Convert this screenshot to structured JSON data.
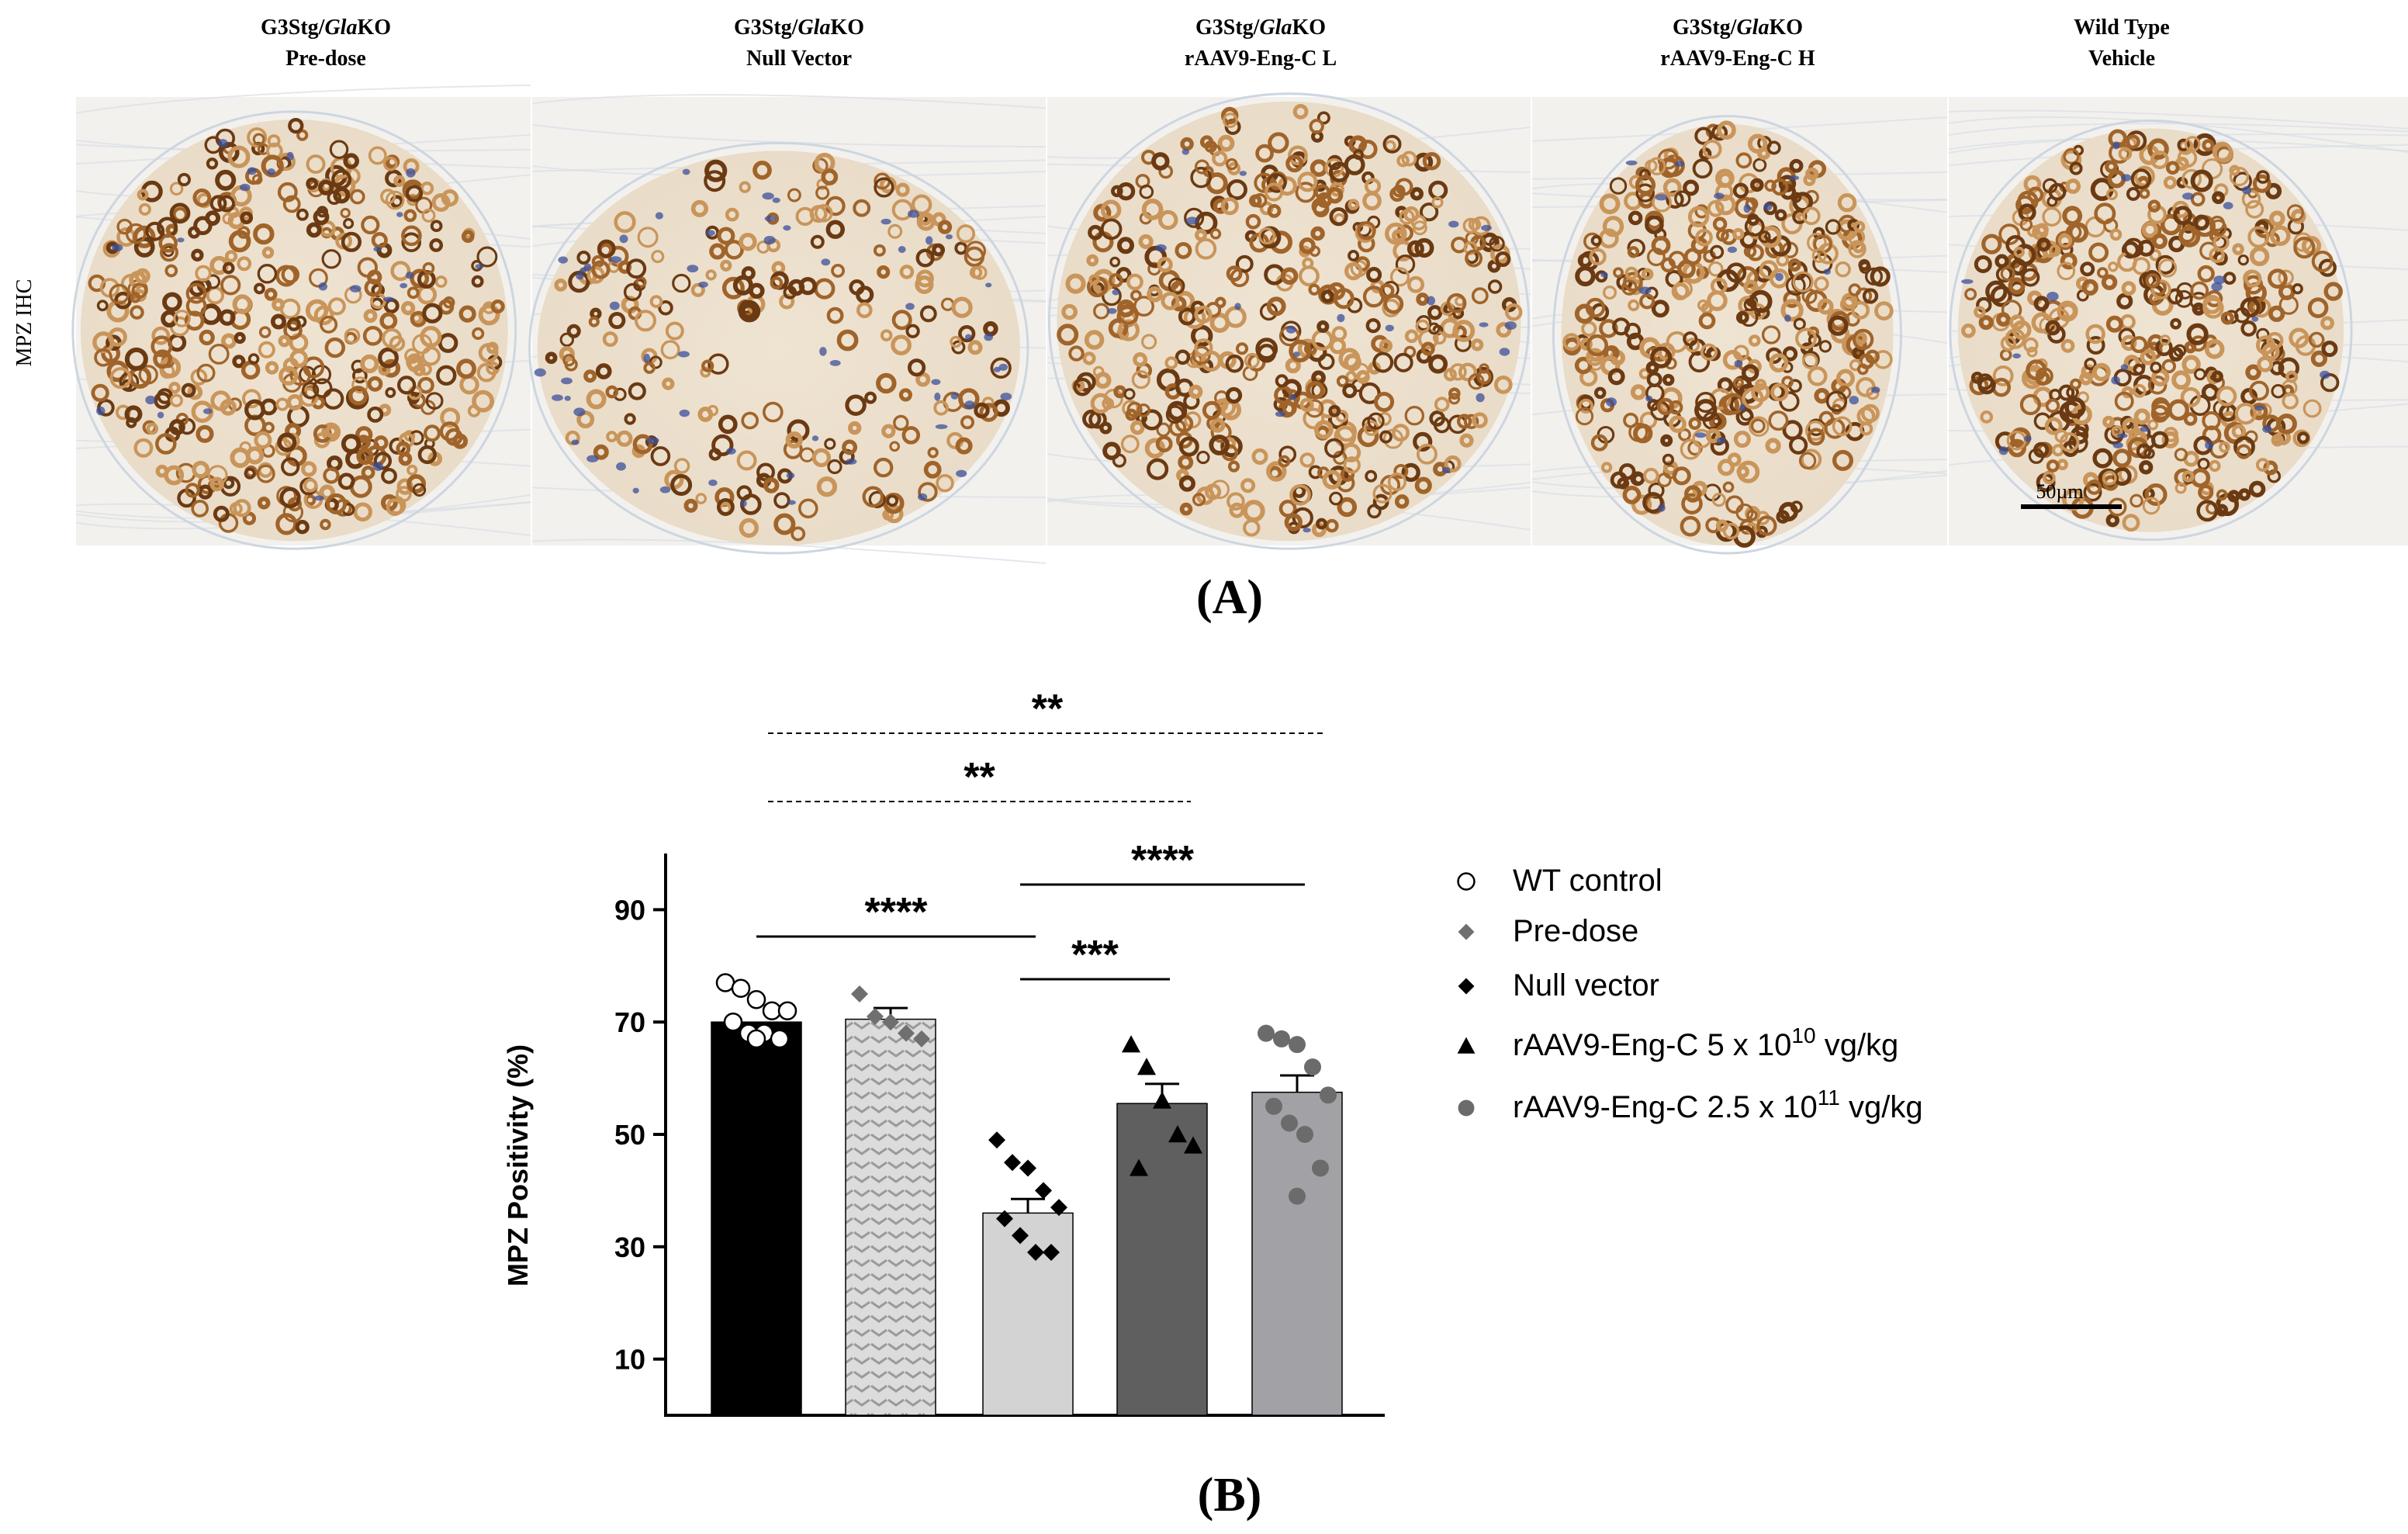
{
  "panel_a": {
    "label": "(A)",
    "row_label": "MPZ IHC",
    "scale_bar": "50µm",
    "panels": [
      {
        "line1_prefix": "G3Stg/",
        "line1_italic": "Gla",
        "line1_suffix": "KO",
        "line2": "Pre-dose"
      },
      {
        "line1_prefix": "G3Stg/",
        "line1_italic": "Gla",
        "line1_suffix": "KO",
        "line2": "Null Vector"
      },
      {
        "line1_prefix": "G3Stg/",
        "line1_italic": "Gla",
        "line1_suffix": "KO",
        "line2": "rAAV9-Eng-C L"
      },
      {
        "line1_prefix": "G3Stg/",
        "line1_italic": "Gla",
        "line1_suffix": "KO",
        "line2": "rAAV9-Eng-C H"
      },
      {
        "line1_prefix": "Wild Type",
        "line1_italic": "",
        "line1_suffix": "",
        "line2": "Vehicle"
      }
    ]
  },
  "panel_b": {
    "label": "(B)"
  },
  "colors": {
    "stain_dark": "#6b3a12",
    "stain_mid": "#a0642a",
    "stain_light": "#c9955a",
    "nuclei": "#3b4f9a",
    "tissue_bg": "#f3f1ee"
  },
  "chart_data": {
    "type": "bar",
    "title": "",
    "xlabel": "",
    "ylabel": "MPZ Positivity (%)",
    "ylim": [
      0,
      100
    ],
    "yticks": [
      10,
      30,
      50,
      70,
      90
    ],
    "categories": [
      "WT control",
      "Pre-dose",
      "Null vector",
      "rAAV9-Eng-C 5 x 10^10 vg/kg",
      "rAAV9-Eng-C 2.5 x 10^11 vg/kg"
    ],
    "series": [
      {
        "name": "WT control",
        "mean": 70,
        "sem": 0,
        "fill": "#000000",
        "marker": "circle-open",
        "points": [
          77,
          76,
          74,
          72,
          72,
          70,
          68,
          68,
          67,
          67
        ]
      },
      {
        "name": "Pre-dose",
        "mean": 70.5,
        "sem": 2,
        "fill": "#d7d7d7",
        "marker": "diamond-gray",
        "pattern": "chevron",
        "points": [
          75,
          71,
          70,
          68,
          67
        ]
      },
      {
        "name": "Null vector",
        "mean": 36,
        "sem": 2.5,
        "fill": "#d3d3d3",
        "marker": "diamond-black",
        "points": [
          49,
          45,
          44,
          40,
          37,
          35,
          32,
          29,
          29
        ]
      },
      {
        "name": "rAAV9-Eng-C 5 x 10^10 vg/kg",
        "mean": 55.5,
        "sem": 3.5,
        "fill": "#5f5f5f",
        "marker": "triangle-black",
        "points": [
          66,
          62,
          56,
          50,
          48,
          44
        ]
      },
      {
        "name": "rAAV9-Eng-C 2.5 x 10^11 vg/kg",
        "mean": 57.5,
        "sem": 3,
        "fill": "#a2a2a6",
        "marker": "circle-gray",
        "points": [
          68,
          67,
          66,
          62,
          57,
          55,
          52,
          50,
          44,
          39
        ]
      }
    ],
    "legend": [
      {
        "text": "WT control",
        "sup": "",
        "after": "",
        "marker": "circle-open"
      },
      {
        "text": "Pre-dose",
        "sup": "",
        "after": "",
        "marker": "diamond-gray"
      },
      {
        "text": "Null vector",
        "sup": "",
        "after": "",
        "marker": "diamond-black"
      },
      {
        "text": "rAAV9-Eng-C 5 x 10",
        "sup": "10",
        "after": " vg/kg",
        "marker": "triangle-black"
      },
      {
        "text": "rAAV9-Eng-C 2.5 x 10",
        "sup": "11",
        "after": " vg/kg",
        "marker": "circle-gray"
      }
    ],
    "significance": [
      {
        "from": 1,
        "to": 5,
        "label": "**",
        "style": "dashed"
      },
      {
        "from": 1,
        "to": 4,
        "label": "**",
        "style": "dashed"
      },
      {
        "from": 1,
        "to": 3,
        "label": "****",
        "style": "solid"
      },
      {
        "from": 3,
        "to": 5,
        "label": "****",
        "style": "solid"
      },
      {
        "from": 3,
        "to": 4,
        "label": "***",
        "style": "solid"
      }
    ]
  }
}
